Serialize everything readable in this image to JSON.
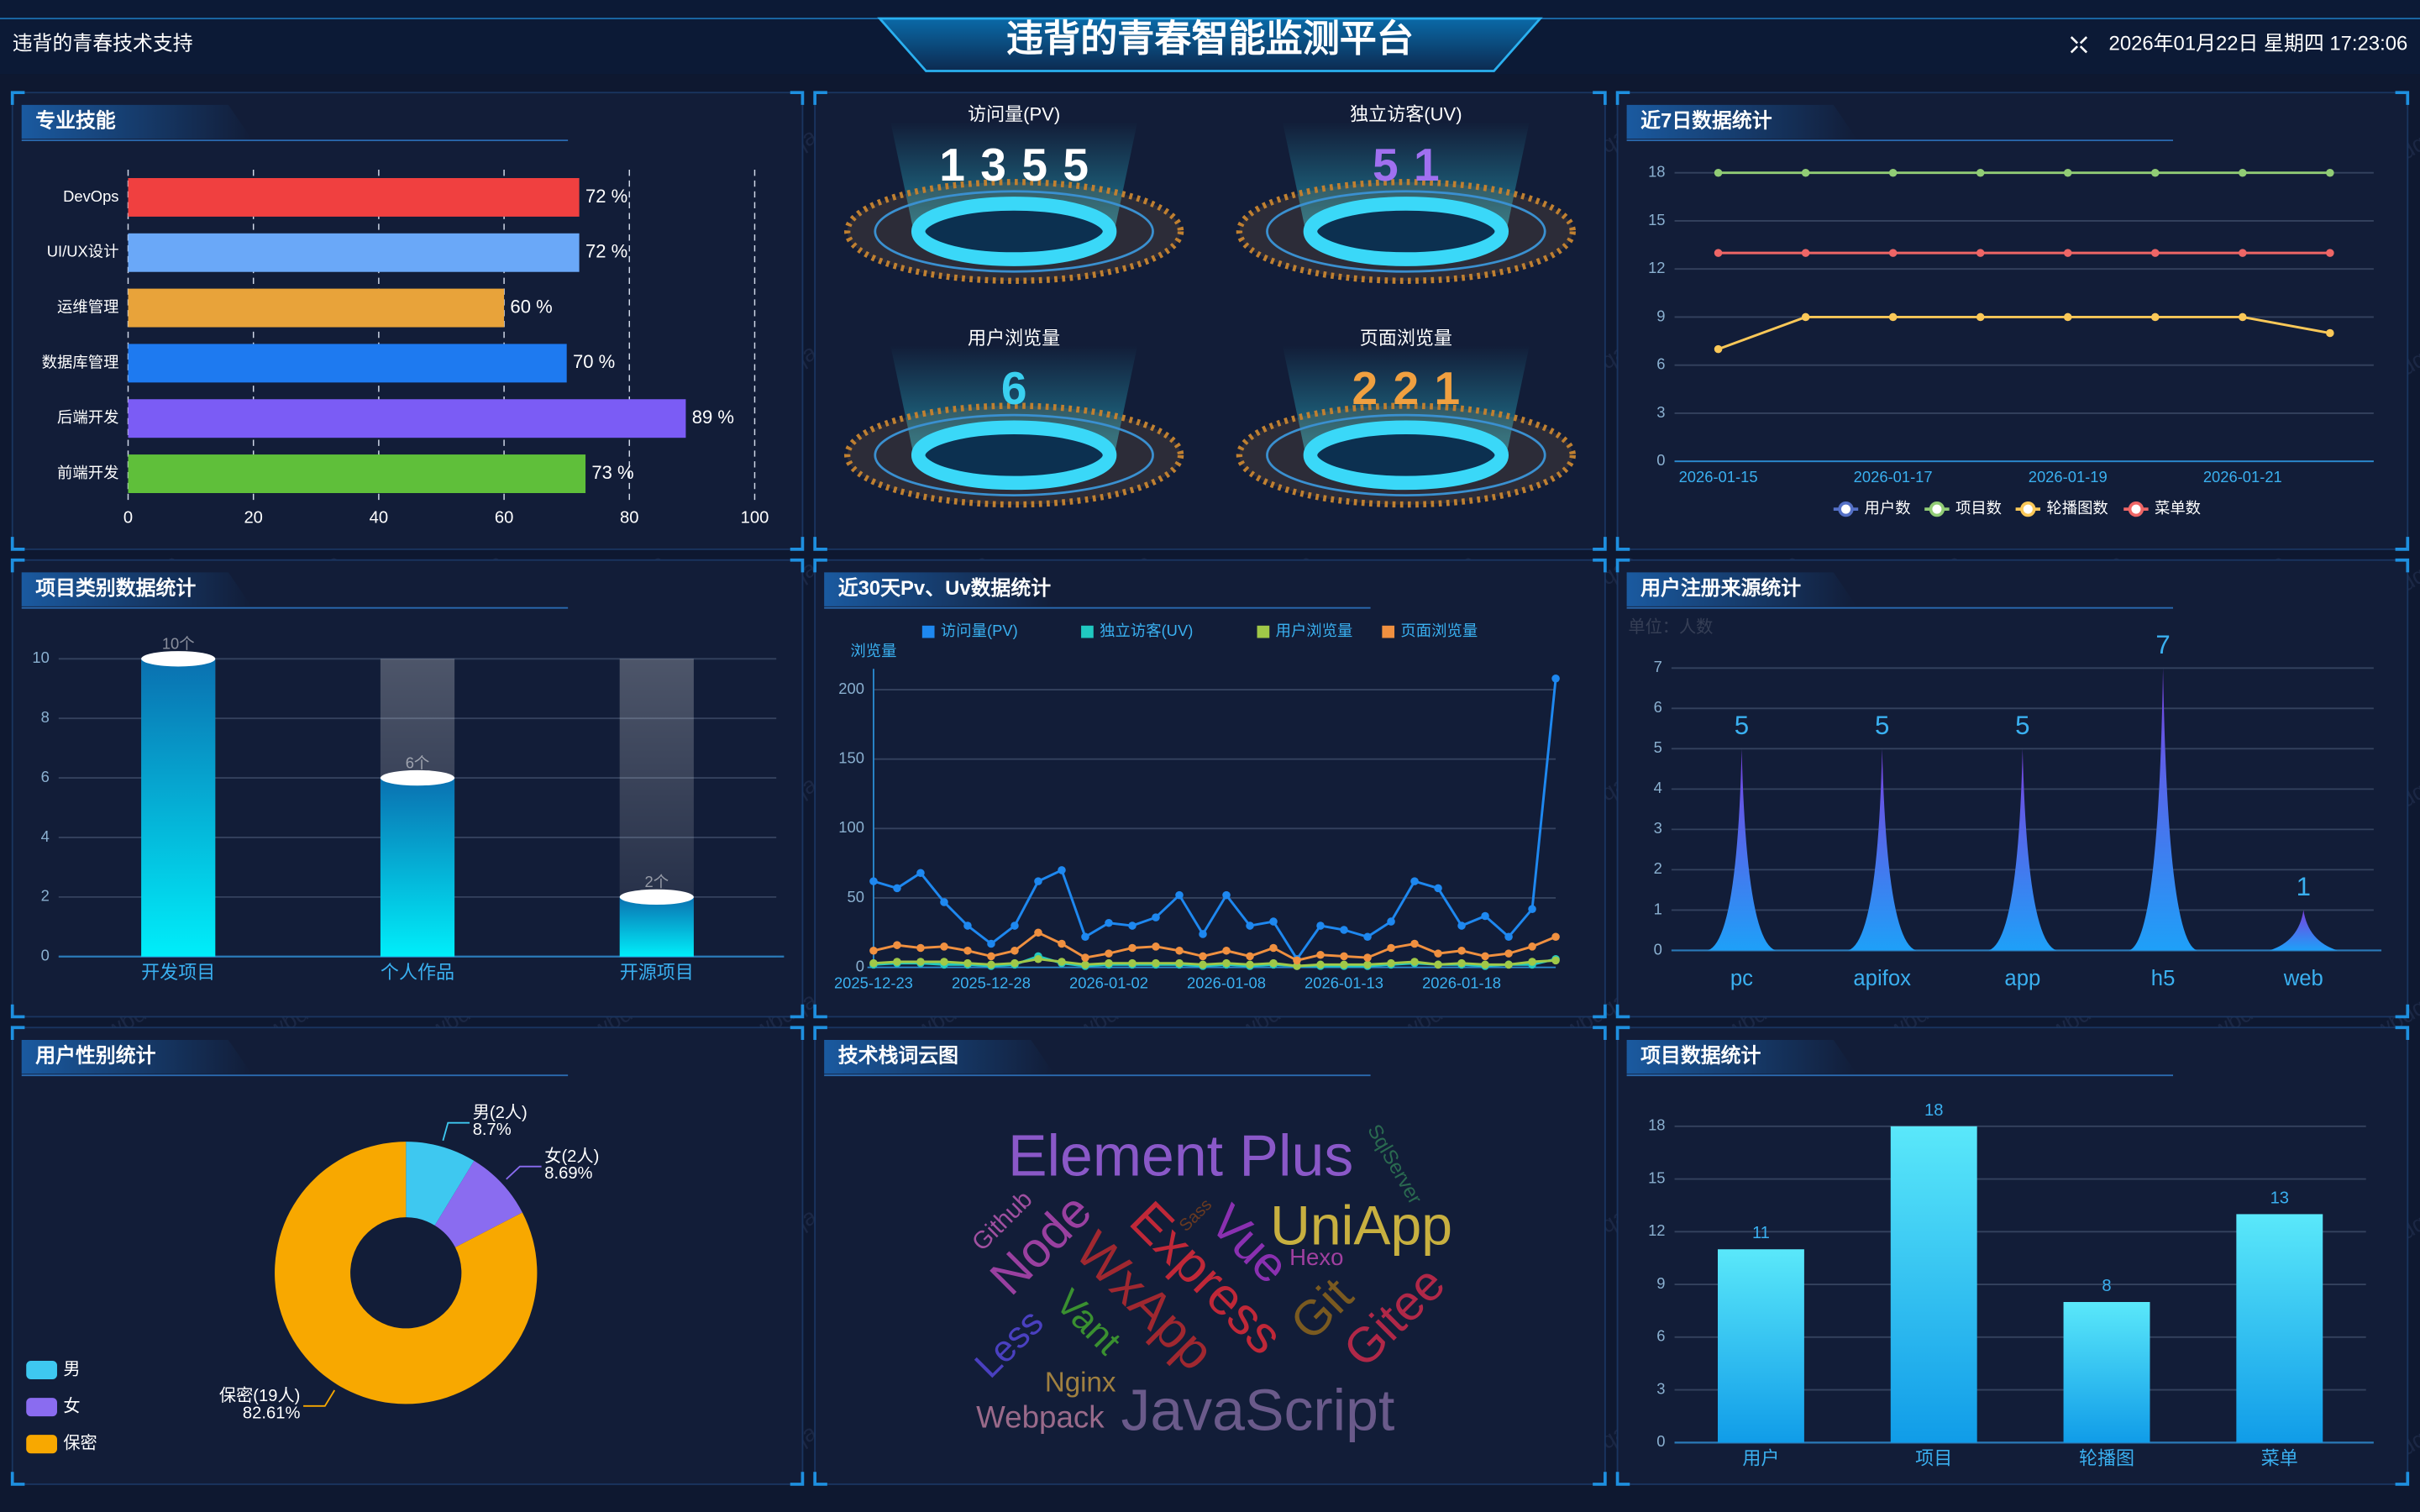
{
  "header": {
    "left": "违背的青春技术支持",
    "title": "违背的青春智能监测平台",
    "datetime": "2026年01月22日 星期四 17:23:06"
  },
  "watermark": "wbdqac",
  "stats": [
    {
      "label": "访问量(PV)",
      "value": 1355,
      "color": "#ffffff"
    },
    {
      "label": "独立访客(UV)",
      "value": 51,
      "color": "#a070f0"
    },
    {
      "label": "用户浏览量",
      "value": 6,
      "color": "#3ad0f0"
    },
    {
      "label": "页面浏览量",
      "value": 221,
      "color": "#f0a040"
    }
  ],
  "chart_data": [
    {
      "type": "bar",
      "horizontal": true,
      "title": "专业技能",
      "categories": [
        "DevOps",
        "UI/UX设计",
        "运维管理",
        "数据库管理",
        "后端开发",
        "前端开发"
      ],
      "values": [
        72,
        72,
        60,
        70,
        89,
        73
      ],
      "value_labels": [
        "72 %",
        "72 %",
        "60 %",
        "70 %",
        "89 %",
        "73 %"
      ],
      "colors": [
        "#f04040",
        "#6aa8f8",
        "#e8a33a",
        "#1e7af0",
        "#7b5cf5",
        "#5fbf3a"
      ],
      "xlim": [
        0,
        100
      ],
      "xticks": [
        0,
        20,
        40,
        60,
        80,
        100
      ],
      "grid": true
    },
    {
      "type": "line",
      "title": "近7日数据统计",
      "boundary_gap": true,
      "categories": [
        "2026-01-15",
        null,
        "2026-01-17",
        null,
        "2026-01-19",
        null,
        "2026-01-21",
        null
      ],
      "series": [
        {
          "name": "用户数",
          "color": "#5470c6",
          "values": [
            null,
            null,
            null,
            null,
            null,
            null,
            null,
            null
          ]
        },
        {
          "name": "项目数",
          "color": "#91cc75",
          "values": [
            18,
            18,
            18,
            18,
            18,
            18,
            18,
            18
          ]
        },
        {
          "name": "轮播图数",
          "color": "#fac858",
          "values": [
            7,
            9,
            9,
            9,
            9,
            9,
            9,
            8
          ]
        },
        {
          "name": "菜单数",
          "color": "#ee6666",
          "values": [
            13,
            13,
            13,
            13,
            13,
            13,
            13,
            13
          ]
        }
      ],
      "ylim": [
        0,
        18
      ],
      "yticks": [
        0,
        3,
        6,
        9,
        12,
        15,
        18
      ],
      "grid": true,
      "legend": "bottom"
    },
    {
      "type": "bar",
      "shape": "cylinder",
      "title": "项目类别数据统计",
      "categories": [
        "开发项目",
        "个人作品",
        "开源项目"
      ],
      "values": [
        10,
        6,
        2
      ],
      "value_labels": [
        "10个",
        "6个",
        "2个"
      ],
      "ylim": [
        0,
        10
      ],
      "yticks": [
        0,
        2,
        4,
        6,
        8,
        10
      ],
      "grid": true
    },
    {
      "type": "line",
      "title": "近30天Pv、Uv数据统计",
      "y_label": "浏览量",
      "boundary_gap": false,
      "categories": [
        "2025-12-23",
        null,
        null,
        null,
        null,
        "2025-12-28",
        null,
        null,
        null,
        null,
        "2026-01-02",
        null,
        null,
        null,
        null,
        "2026-01-08",
        null,
        null,
        null,
        null,
        "2026-01-13",
        null,
        null,
        null,
        null,
        "2026-01-18",
        null,
        null,
        null,
        null
      ],
      "series": [
        {
          "name": "访问量(PV)",
          "color": "#1e88f0",
          "values": [
            62,
            57,
            68,
            47,
            30,
            17,
            30,
            62,
            70,
            22,
            32,
            30,
            36,
            52,
            24,
            52,
            30,
            33,
            6,
            30,
            27,
            22,
            33,
            62,
            57,
            30,
            37,
            22,
            42,
            208
          ]
        },
        {
          "name": "独立访客(UV)",
          "color": "#20c8c0",
          "values": [
            2,
            3,
            3,
            2,
            2,
            1,
            2,
            8,
            3,
            1,
            2,
            2,
            2,
            2,
            1,
            2,
            1,
            2,
            1,
            1,
            1,
            1,
            2,
            3,
            2,
            2,
            1,
            2,
            2,
            6
          ]
        },
        {
          "name": "用户浏览量",
          "color": "#a0c848",
          "values": [
            3,
            4,
            4,
            4,
            3,
            2,
            3,
            6,
            4,
            2,
            3,
            3,
            3,
            3,
            2,
            3,
            2,
            3,
            1,
            2,
            2,
            2,
            3,
            4,
            2,
            3,
            2,
            2,
            4,
            5
          ]
        },
        {
          "name": "页面浏览量",
          "color": "#f09040",
          "values": [
            12,
            16,
            14,
            15,
            12,
            8,
            12,
            25,
            17,
            7,
            10,
            14,
            15,
            12,
            8,
            12,
            8,
            14,
            5,
            9,
            8,
            7,
            14,
            17,
            10,
            12,
            8,
            10,
            15,
            22
          ]
        }
      ],
      "ylim": [
        0,
        215
      ],
      "yticks": [
        0,
        50,
        100,
        150,
        200
      ],
      "grid": true,
      "legend": "top"
    },
    {
      "type": "bar",
      "shape": "spike",
      "title": "用户注册来源统计",
      "subtitle": "单位：人数",
      "categories": [
        "pc",
        "apifox",
        "app",
        "h5",
        "web"
      ],
      "values": [
        5,
        5,
        5,
        7,
        1
      ],
      "ylim": [
        0,
        7
      ],
      "yticks": [
        0,
        1,
        2,
        3,
        4,
        5,
        6,
        7
      ],
      "grid": true
    },
    {
      "type": "pie",
      "title": "用户性别统计",
      "categories": [
        "男",
        "女",
        "保密"
      ],
      "slice_labels": [
        "男(2人)",
        "女(2人)",
        "保密(19人)"
      ],
      "values": [
        8.7,
        8.69,
        82.61
      ],
      "value_labels": [
        "8.7%",
        "8.69%",
        "82.61%"
      ],
      "colors": [
        "#3ec8f0",
        "#8a6cf0",
        "#f8a800"
      ],
      "legend": "bottom-left"
    },
    {
      "type": "bar",
      "shape": "plain",
      "title": "项目数据统计",
      "categories": [
        "用户",
        "项目",
        "轮播图",
        "菜单"
      ],
      "values": [
        11,
        18,
        8,
        13
      ],
      "ylim": [
        0,
        18
      ],
      "yticks": [
        0,
        3,
        6,
        9,
        12,
        15,
        18
      ],
      "grid": true
    }
  ],
  "wordcloud": {
    "title": "技术栈词云图",
    "words": [
      {
        "text": "Element Plus",
        "color": "#8a58c8"
      },
      {
        "text": "UniApp",
        "color": "#c8b040"
      },
      {
        "text": "JavaScript",
        "color": "#6a5a8a"
      },
      {
        "text": "Express",
        "color": "#c02838"
      },
      {
        "text": "WxApp",
        "color": "#a02830"
      },
      {
        "text": "Vue",
        "color": "#8a30b0"
      },
      {
        "text": "Node",
        "color": "#9a40a0"
      },
      {
        "text": "Git",
        "color": "#7a5a20"
      },
      {
        "text": "Gitee",
        "color": "#b02848"
      },
      {
        "text": "Vant",
        "color": "#3a9030"
      },
      {
        "text": "Less",
        "color": "#4a40c0"
      },
      {
        "text": "Hexo",
        "color": "#a040a0"
      },
      {
        "text": "Nginx",
        "color": "#a08040"
      },
      {
        "text": "Webpack",
        "color": "#9a6a8a"
      },
      {
        "text": "Github",
        "color": "#a050a0"
      },
      {
        "text": "SqlServer",
        "color": "#2a6a50"
      },
      {
        "text": "Sass",
        "color": "#6a3a20"
      }
    ]
  }
}
